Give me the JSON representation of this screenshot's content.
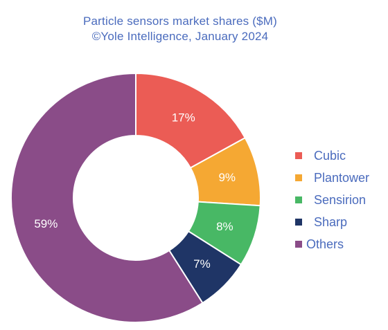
{
  "chart_data": {
    "type": "pie",
    "title": "Particle sensors market shares ($M)",
    "subtitle": "©Yole Intelligence, January 2024",
    "donut": true,
    "legend_position": "right",
    "slices": [
      {
        "label": "Cubic",
        "value": 17,
        "display": "17%",
        "color": "#EB5C55"
      },
      {
        "label": "Plantower",
        "value": 9,
        "display": "9%",
        "color": "#F5A833"
      },
      {
        "label": "Sensirion",
        "value": 8,
        "display": "8%",
        "color": "#48B865"
      },
      {
        "label": "Sharp",
        "value": 7,
        "display": "7%",
        "color": "#1F3566"
      },
      {
        "label": "Others",
        "value": 59,
        "display": "59%",
        "color": "#8A4C88"
      }
    ]
  }
}
